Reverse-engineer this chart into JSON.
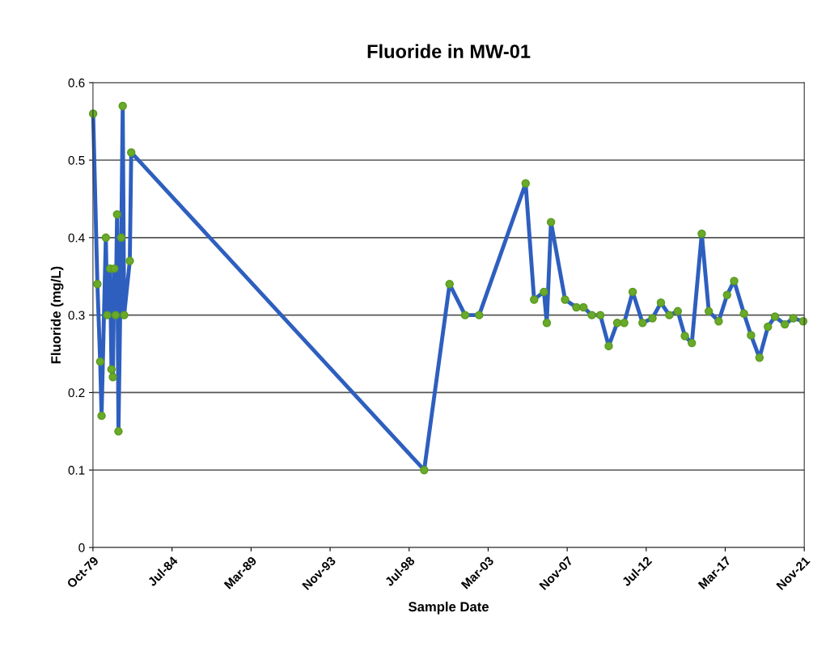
{
  "chart_data": {
    "type": "line",
    "title": "Fluoride in MW-01",
    "xlabel": "Sample Date",
    "ylabel": "Fluoride (mg/L)",
    "x": [
      "1979-11",
      "1980-02",
      "1980-04",
      "1980-05",
      "1980-08",
      "1980-09",
      "1980-11",
      "1980-12",
      "1981-01",
      "1981-02",
      "1981-03",
      "1981-04",
      "1981-05",
      "1981-07",
      "1981-08",
      "1981-09",
      "1982-01",
      "1982-02",
      "1999-06",
      "2000-12",
      "2001-11",
      "2002-09",
      "2005-06",
      "2005-12",
      "2006-07",
      "2006-09",
      "2006-12",
      "2007-10",
      "2008-06",
      "2008-11",
      "2009-05",
      "2009-11",
      "2010-05",
      "2010-11",
      "2011-04",
      "2011-10",
      "2012-05",
      "2012-12",
      "2013-06",
      "2013-12",
      "2014-06",
      "2014-11",
      "2015-04",
      "2015-11",
      "2016-04",
      "2016-11",
      "2017-05",
      "2017-10",
      "2018-05",
      "2018-10",
      "2019-04",
      "2019-10",
      "2020-03",
      "2020-10",
      "2021-04",
      "2021-11"
    ],
    "series": [
      {
        "color": "#2e5fbf",
        "values": [
          0.56,
          0.34,
          0.24,
          0.17,
          0.4,
          0.3,
          0.36,
          0.23,
          0.22,
          0.36,
          0.3,
          0.43,
          0.15,
          0.4,
          0.57,
          0.3,
          0.37,
          0.51,
          0.1,
          0.34,
          0.3,
          0.3,
          0.47,
          0.32,
          0.33,
          0.29,
          0.42,
          0.32,
          0.31,
          0.31,
          0.3,
          0.3,
          0.26,
          0.29,
          0.29,
          0.33,
          0.29,
          0.296,
          0.316,
          0.3,
          0.305,
          0.273,
          0.264,
          0.405,
          0.305,
          0.292,
          0.326,
          0.344,
          0.302,
          0.274,
          0.245,
          0.285,
          0.298,
          0.288,
          0.296,
          0.292
        ]
      }
    ],
    "marker": "circle",
    "line_style": "solid",
    "grid": "y",
    "xlim": [
      "1979-10-28",
      "2021-11-24"
    ],
    "xticks": [
      {
        "value": "1979-10-28",
        "label": "Oct-79"
      },
      {
        "value": "1984-07-01",
        "label": "Jul-84"
      },
      {
        "value": "1989-03-05",
        "label": "Mar-89"
      },
      {
        "value": "1993-11-07",
        "label": "Nov-93"
      },
      {
        "value": "1998-07-11",
        "label": "Jul-98"
      },
      {
        "value": "2003-03-14",
        "label": "Mar-03"
      },
      {
        "value": "2007-11-16",
        "label": "Nov-07"
      },
      {
        "value": "2012-07-19",
        "label": "Jul-12"
      },
      {
        "value": "2017-03-22",
        "label": "Mar-17"
      },
      {
        "value": "2021-11-24",
        "label": "Nov-21"
      }
    ],
    "ylim": [
      0,
      0.6
    ],
    "yticks": [
      0,
      0.1,
      0.2,
      0.3,
      0.4,
      0.5,
      0.6
    ]
  }
}
